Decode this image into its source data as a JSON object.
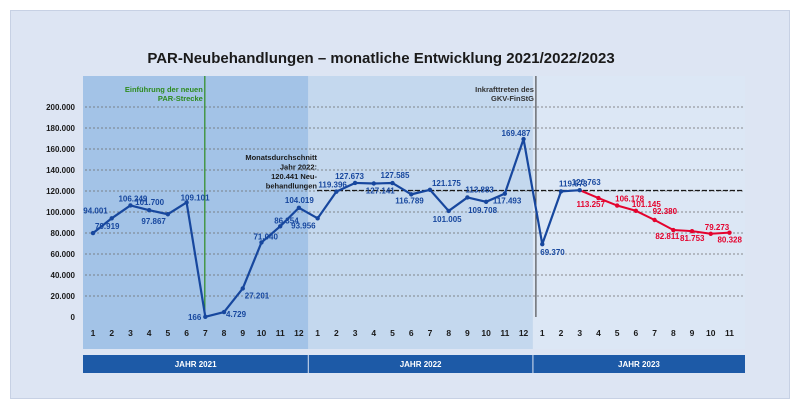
{
  "chart_data": {
    "type": "line",
    "title": "PAR-Neubehandlungen – monatliche Entwicklung 2021/2022/2023",
    "ylim": [
      0,
      200000
    ],
    "y_ticks": [
      "0",
      "20.000",
      "40.000",
      "60.000",
      "80.000",
      "100.000",
      "120.000",
      "140.000",
      "160.000",
      "180.000",
      "200.000"
    ],
    "y_tick_values": [
      0,
      20000,
      40000,
      60000,
      80000,
      100000,
      120000,
      140000,
      160000,
      180000,
      200000
    ],
    "years": [
      {
        "label": "JAHR 2021",
        "months": [
          "1",
          "2",
          "3",
          "4",
          "5",
          "6",
          "7",
          "8",
          "9",
          "10",
          "11",
          "12"
        ]
      },
      {
        "label": "JAHR 2022",
        "months": [
          "1",
          "2",
          "3",
          "4",
          "5",
          "6",
          "7",
          "8",
          "9",
          "10",
          "11",
          "12"
        ]
      },
      {
        "label": "JAHR 2023",
        "months": [
          "1",
          "2",
          "3",
          "4",
          "5",
          "6",
          "7",
          "8",
          "9",
          "10",
          "11"
        ]
      }
    ],
    "series": [
      {
        "color": "#17479e",
        "values": [
          {
            "v": 79919,
            "label": "79.919"
          },
          {
            "v": 94001,
            "label": "94.001"
          },
          {
            "v": 106249,
            "label": "106.249"
          },
          {
            "v": 101700,
            "label": "101.700"
          },
          {
            "v": 97867,
            "label": "97.867"
          },
          {
            "v": 109101,
            "label": "109.101"
          },
          {
            "v": 166,
            "label": "166"
          },
          {
            "v": 4729,
            "label": "4.729"
          },
          {
            "v": 27201,
            "label": "27.201"
          },
          {
            "v": 71040,
            "label": "71.040"
          },
          {
            "v": 86354,
            "label": "86.354"
          },
          {
            "v": 104019,
            "label": "104.019"
          },
          {
            "v": 93956,
            "label": "93.956"
          },
          {
            "v": 119396,
            "label": "119.396"
          },
          {
            "v": 127673,
            "label": "127.673"
          },
          {
            "v": 127141,
            "label": "127.141"
          },
          {
            "v": 127585,
            "label": "127.585"
          },
          {
            "v": 116789,
            "label": "116.789"
          },
          {
            "v": 121175,
            "label": "121.175"
          },
          {
            "v": 101005,
            "label": "101.005"
          },
          {
            "v": 113883,
            "label": "113.883"
          },
          {
            "v": 109708,
            "label": "109.708"
          },
          {
            "v": 117493,
            "label": "117.493"
          },
          {
            "v": 169487,
            "label": "169.487"
          },
          {
            "v": 69370,
            "label": "69.370"
          },
          {
            "v": 119573,
            "label": "119.573"
          },
          {
            "v": 120763,
            "label": "120.763"
          }
        ]
      },
      {
        "color": "#e4032e",
        "values": [
          {
            "v": 113257,
            "label": "113.257"
          },
          {
            "v": 106178,
            "label": "106.178"
          },
          {
            "v": 101145,
            "label": "101.145"
          },
          {
            "v": 92380,
            "label": "92.380"
          },
          {
            "v": 82811,
            "label": "82.811"
          },
          {
            "v": 81753,
            "label": "81.753"
          },
          {
            "v": 79273,
            "label": "79.273"
          },
          {
            "v": 80328,
            "label": "80.328"
          }
        ]
      }
    ],
    "reference_line": {
      "value": 120441,
      "label_lines": [
        "Monatsdurchschnitt",
        "Jahr 2022:",
        "120.441 Neu-",
        "behandlungen"
      ]
    },
    "annotations": [
      {
        "lines": [
          "Einführung der neuen",
          "PAR-Strecke"
        ],
        "color": "#2e8b1f"
      },
      {
        "lines": [
          "Inkrafttreten des",
          "GKV-FinStG"
        ],
        "color": "#333333"
      }
    ],
    "colors": {
      "background": "#dde5f3",
      "band_2021": "#a3c3e7",
      "band_2022": "#c4d8ee",
      "band_2023": "#dce7f5",
      "year_bar": "#1d5aa7",
      "main_line": "#17479e",
      "forecast_line": "#e4032e"
    }
  }
}
